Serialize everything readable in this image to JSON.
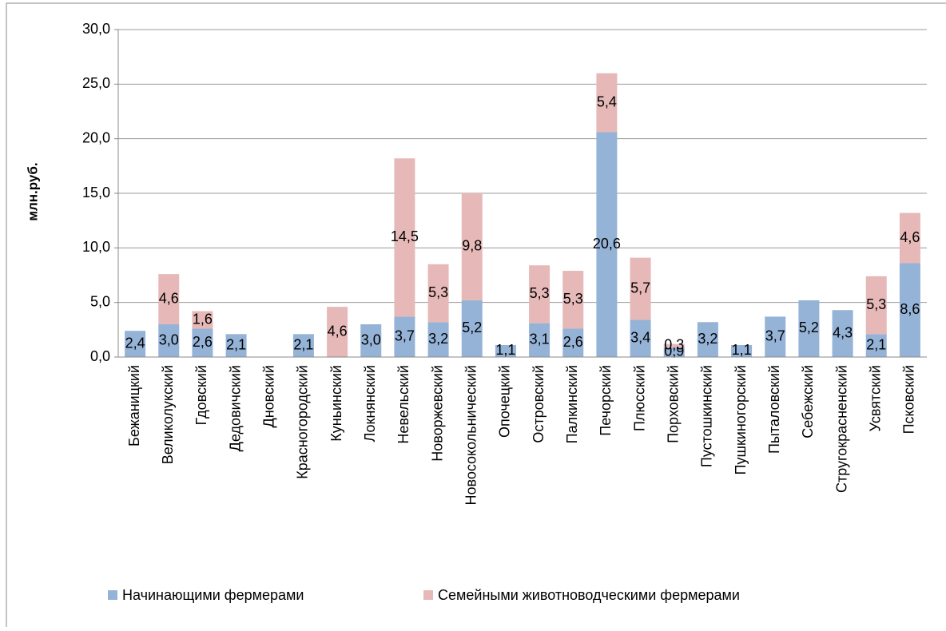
{
  "chart_data": {
    "type": "stacked_bar",
    "ylabel": "млн.руб.",
    "categories": [
      "Бежаницкий",
      "Великолукский",
      "Гдовский",
      "Дедовичский",
      "Дновский",
      "Красногородский",
      "Куньинский",
      "Локнянский",
      "Невельский",
      "Новоржевский",
      "Новосокольнический",
      "Опочецкий",
      "Островский",
      "Палкинский",
      "Печорский",
      "Плюсский",
      "Порховский",
      "Пустошкинский",
      "Пушкиногорский",
      "Пыталовский",
      "Себежский",
      "Стругокрасненский",
      "Усвятский",
      "Псковский"
    ],
    "series": [
      {
        "name": "Начинающими фермерами",
        "color": "#95b3d7",
        "values": [
          2.4,
          3.0,
          2.6,
          2.1,
          null,
          2.1,
          null,
          3.0,
          3.7,
          3.2,
          5.2,
          1.1,
          3.1,
          2.6,
          20.6,
          3.4,
          0.9,
          3.2,
          1.1,
          3.7,
          5.2,
          4.3,
          2.1,
          8.6
        ],
        "value_labels": [
          "2,4",
          "3,0",
          "2,6",
          "2,1",
          null,
          "2,1",
          null,
          "3,0",
          "3,7",
          "3,2",
          "5,2",
          "1,1",
          "3,1",
          "2,6",
          "20,6",
          "3,4",
          "0,9",
          "3,2",
          "1,1",
          "3,7",
          "5,2",
          "4,3",
          "2,1",
          "8,6"
        ]
      },
      {
        "name": "Семейными животноводческими фермерами",
        "color": "#e6b9b8",
        "values": [
          null,
          4.6,
          1.6,
          null,
          null,
          null,
          4.6,
          null,
          14.5,
          5.3,
          9.8,
          null,
          5.3,
          5.3,
          5.4,
          5.7,
          0.3,
          null,
          null,
          null,
          null,
          null,
          5.3,
          4.6
        ],
        "value_labels": [
          null,
          "4,6",
          "1,6",
          null,
          null,
          null,
          "4,6",
          null,
          "14,5",
          "5,3",
          "9,8",
          null,
          "5,3",
          "5,3",
          "5,4",
          "5,7",
          "0,3",
          null,
          null,
          null,
          null,
          null,
          "5,3",
          "4,6"
        ]
      }
    ],
    "ylim": [
      0,
      30
    ],
    "yticks": [
      {
        "value": 0,
        "label": "0,0"
      },
      {
        "value": 5,
        "label": "5,0"
      },
      {
        "value": 10,
        "label": "10,0"
      },
      {
        "value": 15,
        "label": "15,0"
      },
      {
        "value": 20,
        "label": "20,0"
      },
      {
        "value": 25,
        "label": "25,0"
      },
      {
        "value": 30,
        "label": "30,0"
      }
    ],
    "grid": true,
    "legend": "bottom"
  }
}
